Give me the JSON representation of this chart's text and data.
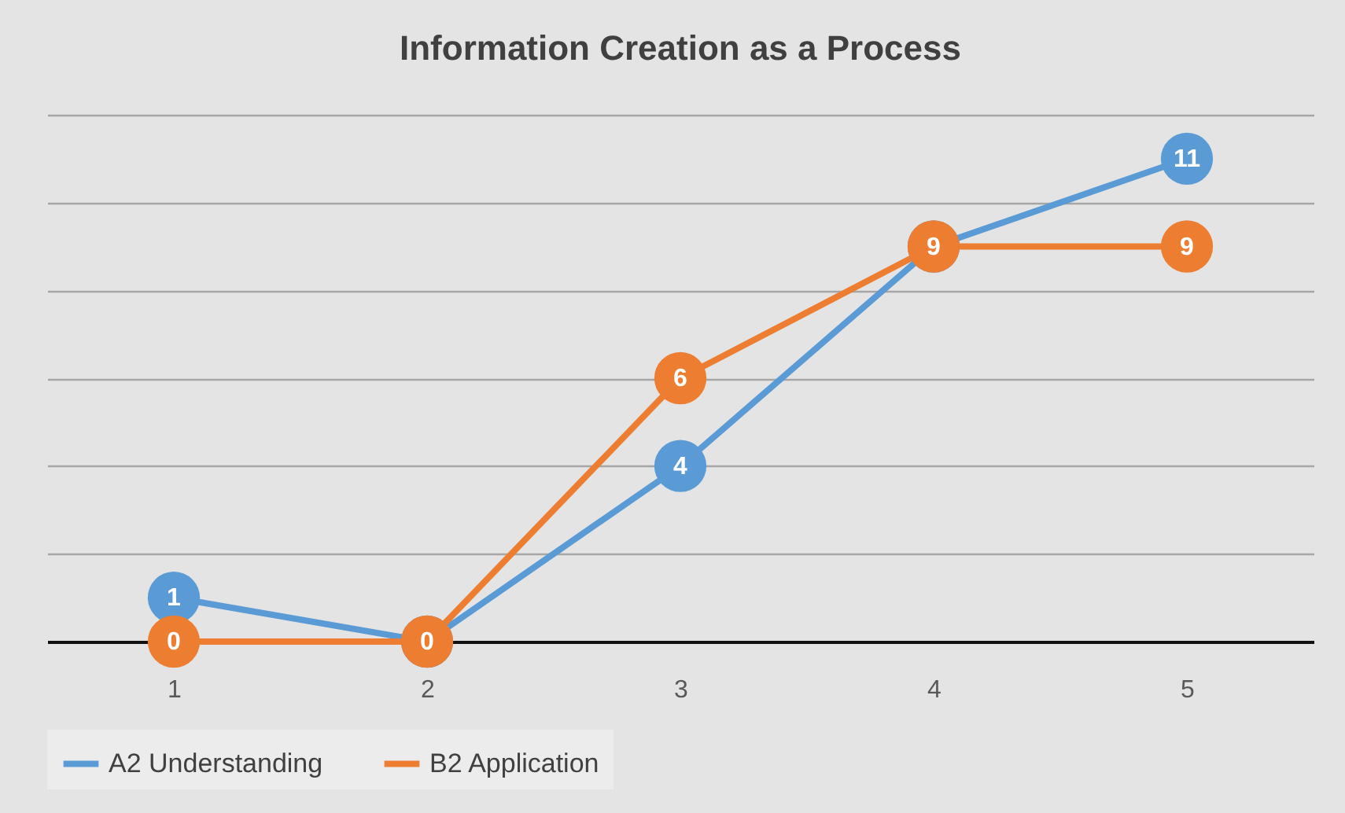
{
  "chart_data": {
    "type": "line",
    "title": "Information Creation as a Process",
    "categories": [
      "1",
      "2",
      "3",
      "4",
      "5"
    ],
    "series": [
      {
        "name": "A2 Understanding",
        "color": "#5b9bd5",
        "values": [
          1,
          0,
          4,
          9,
          11
        ],
        "value_labels": [
          "1",
          null,
          "4",
          null,
          "11"
        ]
      },
      {
        "name": "B2 Application",
        "color": "#ed7d31",
        "values": [
          0,
          0,
          6,
          9,
          9
        ],
        "value_labels": [
          "0",
          "0",
          "6",
          "9",
          "9"
        ]
      }
    ],
    "ylim": [
      0,
      12
    ],
    "yticks": [
      0,
      2,
      4,
      6,
      8,
      10,
      12
    ],
    "tick_labels": "x",
    "grid": "y",
    "legend": "bottom",
    "marker": "circle",
    "line_style": "solid"
  }
}
